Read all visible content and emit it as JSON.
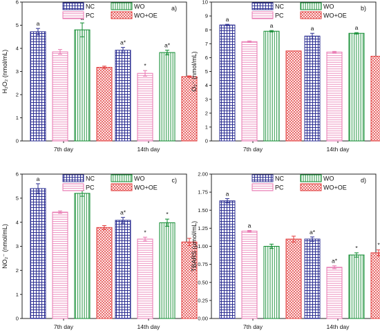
{
  "legend": [
    {
      "name": "NC",
      "color": "#2b2e92",
      "pattern": "grid"
    },
    {
      "name": "WO",
      "color": "#0d8a2e",
      "pattern": "vlines"
    },
    {
      "name": "PC",
      "color": "#e876b0",
      "pattern": "hlines"
    },
    {
      "name": "WO+OE",
      "color": "#e23a3a",
      "pattern": "cross"
    }
  ],
  "chart_data": [
    {
      "type": "bar",
      "tag": "a)",
      "ylabel": "H₂O₂ (nmol/mL)",
      "ylim": [
        0,
        6
      ],
      "ticks": [
        0,
        1,
        2,
        3,
        4,
        5,
        6
      ],
      "categories": [
        "7th day",
        "14th day"
      ],
      "series": [
        {
          "name": "NC",
          "values": [
            4.72,
            3.92
          ],
          "errors": [
            0.14,
            0.12
          ],
          "labels": [
            "a",
            "a*"
          ]
        },
        {
          "name": "PC",
          "values": [
            3.85,
            2.92
          ],
          "errors": [
            0.1,
            0.12
          ],
          "labels": [
            "",
            "*"
          ]
        },
        {
          "name": "WO",
          "values": [
            4.8,
            3.82
          ],
          "errors": [
            0.3,
            0.1
          ],
          "labels": [
            "a",
            "a*"
          ]
        },
        {
          "name": "WO+OE",
          "values": [
            3.18,
            2.78
          ],
          "errors": [
            0.05,
            0.03
          ],
          "labels": [
            "",
            ""
          ]
        }
      ]
    },
    {
      "type": "bar",
      "tag": "b)",
      "ylabel": "O₂⁻ (nmol/mL)",
      "ylim": [
        0,
        10
      ],
      "ticks": [
        0,
        1,
        2,
        3,
        4,
        5,
        6,
        7,
        8,
        9,
        10
      ],
      "categories": [
        "7th day",
        "14th day"
      ],
      "series": [
        {
          "name": "NC",
          "values": [
            8.35,
            7.55
          ],
          "errors": [
            0.05,
            0.2
          ],
          "labels": [
            "a",
            "a"
          ]
        },
        {
          "name": "PC",
          "values": [
            7.15,
            6.4
          ],
          "errors": [
            0.05,
            0.05
          ],
          "labels": [
            "",
            ""
          ]
        },
        {
          "name": "WO",
          "values": [
            7.9,
            7.75
          ],
          "errors": [
            0.05,
            0.05
          ],
          "labels": [
            "a",
            "a"
          ]
        },
        {
          "name": "WO+OE",
          "values": [
            6.48,
            6.1
          ],
          "errors": [
            0.0,
            0.0
          ],
          "labels": [
            "",
            ""
          ]
        }
      ]
    },
    {
      "type": "bar",
      "tag": "c)",
      "ylabel": "NO₂⁻ (nmol/mL)",
      "ylim": [
        0,
        6
      ],
      "ticks": [
        0,
        1,
        2,
        3,
        4,
        5,
        6
      ],
      "categories": [
        "7th day",
        "14th day"
      ],
      "series": [
        {
          "name": "NC",
          "values": [
            5.4,
            4.08
          ],
          "errors": [
            0.2,
            0.12
          ],
          "labels": [
            "a",
            "a*"
          ]
        },
        {
          "name": "PC",
          "values": [
            4.42,
            3.3
          ],
          "errors": [
            0.05,
            0.08
          ],
          "labels": [
            "",
            "*"
          ]
        },
        {
          "name": "WO",
          "values": [
            5.2,
            3.98
          ],
          "errors": [
            0.12,
            0.15
          ],
          "labels": [
            "a",
            "*"
          ]
        },
        {
          "name": "WO+OE",
          "values": [
            3.78,
            3.18
          ],
          "errors": [
            0.08,
            0.15
          ],
          "labels": [
            "",
            ""
          ]
        }
      ]
    },
    {
      "type": "bar",
      "tag": "d)",
      "ylabel": "TBARS (µmol/mL)",
      "ylim": [
        0,
        2.0
      ],
      "ticks": [
        0.0,
        0.25,
        0.5,
        0.75,
        1.0,
        1.25,
        1.5,
        1.75,
        2.0
      ],
      "tick_labels": [
        "0.00",
        "0.25",
        "0.50",
        "0.75",
        "1.00",
        "1.25",
        "1.50",
        "1.75",
        "2.00"
      ],
      "categories": [
        "7th day",
        "14th day"
      ],
      "series": [
        {
          "name": "NC",
          "values": [
            1.63,
            1.1
          ],
          "errors": [
            0.03,
            0.03
          ],
          "labels": [
            "a",
            "a*"
          ]
        },
        {
          "name": "PC",
          "values": [
            1.21,
            0.71
          ],
          "errors": [
            0.01,
            0.02
          ],
          "labels": [
            "a",
            "a*"
          ]
        },
        {
          "name": "WO",
          "values": [
            1.0,
            0.88
          ],
          "errors": [
            0.03,
            0.03
          ],
          "labels": [
            "",
            "*"
          ]
        },
        {
          "name": "WO+OE",
          "values": [
            1.1,
            0.91
          ],
          "errors": [
            0.04,
            0.04
          ],
          "labels": [
            "",
            "*"
          ]
        }
      ]
    }
  ]
}
